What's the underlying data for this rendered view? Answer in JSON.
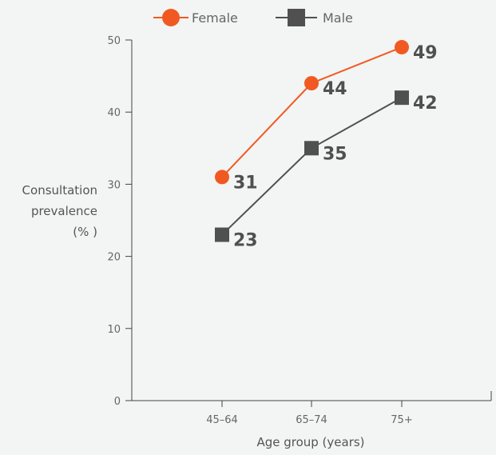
{
  "chart_data": {
    "type": "line",
    "categories": [
      "45–64",
      "65–74",
      "75+"
    ],
    "series": [
      {
        "name": "Female",
        "values": [
          31,
          44,
          49
        ],
        "labels": [
          "31",
          "44",
          "49"
        ],
        "color": "#f05a22",
        "marker": "circle"
      },
      {
        "name": "Male",
        "values": [
          23,
          35,
          42
        ],
        "labels": [
          "23",
          "35",
          "42"
        ],
        "color": "#505050",
        "marker": "square"
      }
    ],
    "xlabel": "Age group (years)",
    "ylabel_lines": [
      "Consultation",
      "prevalence",
      "(% )"
    ],
    "ylim": [
      0,
      50
    ],
    "yticks": [
      0,
      10,
      20,
      30,
      40,
      50
    ],
    "grid": false,
    "legend_position": "top"
  }
}
